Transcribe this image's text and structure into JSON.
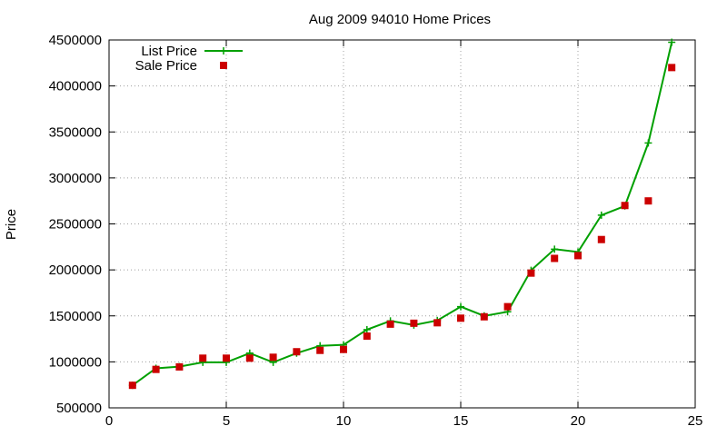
{
  "chart_data": {
    "type": "line",
    "title": "Aug 2009 94010 Home Prices",
    "xlabel": "",
    "ylabel": "Price",
    "xlim": [
      0,
      25
    ],
    "ylim": [
      500000,
      4500000
    ],
    "xticks": [
      0,
      5,
      10,
      15,
      20,
      25
    ],
    "yticks": [
      500000,
      1000000,
      1500000,
      2000000,
      2500000,
      3000000,
      3500000,
      4000000,
      4500000
    ],
    "grid": true,
    "legend_position": "top-left",
    "series": [
      {
        "name": "List Price",
        "style": "line-plus",
        "color": "#00a000",
        "x": [
          1,
          2,
          3,
          4,
          5,
          6,
          7,
          8,
          9,
          10,
          11,
          12,
          13,
          14,
          15,
          16,
          17,
          18,
          19,
          20,
          21,
          22,
          23,
          24
        ],
        "y": [
          745000,
          930000,
          948000,
          995000,
          995000,
          1095000,
          995000,
          1095000,
          1175000,
          1185000,
          1350000,
          1445000,
          1400000,
          1450000,
          1600000,
          1500000,
          1545000,
          1995000,
          2225000,
          2195000,
          2595000,
          2695000,
          3380000,
          4475000
        ]
      },
      {
        "name": "Sale Price",
        "style": "square",
        "color": "#cc0000",
        "x": [
          1,
          2,
          3,
          4,
          5,
          6,
          7,
          8,
          9,
          10,
          11,
          12,
          13,
          14,
          15,
          16,
          17,
          18,
          19,
          20,
          21,
          22,
          23,
          24
        ],
        "y": [
          745000,
          918000,
          945000,
          1040000,
          1040000,
          1040000,
          1050000,
          1110000,
          1125000,
          1135000,
          1280000,
          1410000,
          1420000,
          1425000,
          1475000,
          1490000,
          1600000,
          1965000,
          2125000,
          2155000,
          2330000,
          2700000,
          2750000,
          4200000
        ]
      }
    ]
  }
}
